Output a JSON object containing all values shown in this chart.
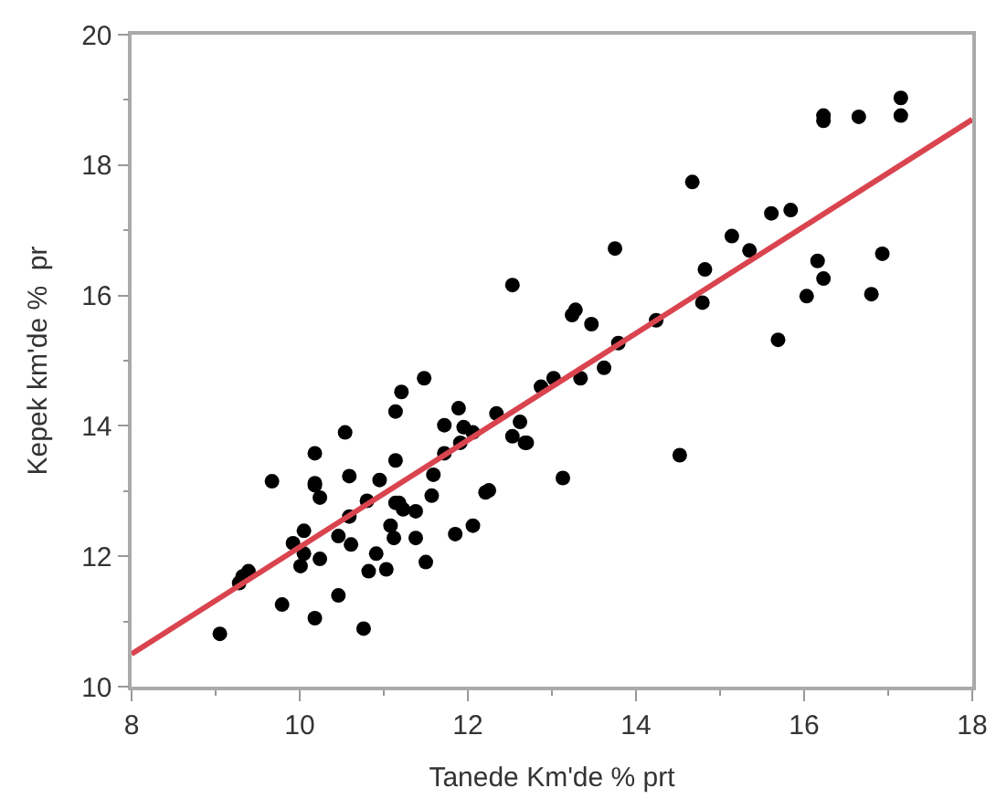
{
  "chart_data": {
    "type": "scatter",
    "xlabel": "Tanede Km'de % prt",
    "ylabel": "Kepek km'de %  pr",
    "xlim": [
      8,
      18
    ],
    "ylim": [
      10,
      20
    ],
    "xticks": [
      8,
      {
        "value": 9,
        "label": null
      },
      10,
      {
        "value": 11,
        "label": null
      },
      12,
      {
        "value": 13,
        "label": null
      },
      14,
      {
        "value": 15,
        "label": null
      },
      16,
      {
        "value": 17,
        "label": null
      },
      18
    ],
    "yticks": [
      10,
      {
        "value": 11,
        "label": null
      },
      12,
      {
        "value": 13,
        "label": null
      },
      14,
      {
        "value": 15,
        "label": null
      },
      16,
      {
        "value": 17,
        "label": null
      },
      18,
      {
        "value": 19,
        "label": null
      },
      20
    ],
    "grid": false,
    "marker": "circle",
    "series": [
      {
        "color": "#000000",
        "x": [
          9.05,
          9.28,
          9.32,
          9.39,
          9.67,
          9.79,
          9.92,
          10.05,
          10.01,
          10.05,
          10.18,
          10.18,
          10.18,
          10.24,
          10.24,
          10.18,
          10.46,
          10.46,
          10.54,
          10.59,
          10.59,
          10.61,
          10.76,
          10.82,
          10.8,
          10.91,
          10.95,
          11.03,
          11.14,
          11.21,
          11.14,
          11.08,
          11.12,
          11.14,
          11.18,
          11.23,
          11.38,
          11.38,
          11.5,
          11.48,
          11.57,
          11.59,
          11.72,
          11.72,
          11.85,
          11.89,
          11.95,
          12.06,
          11.91,
          12.06,
          12.21,
          12.25,
          12.34,
          12.53,
          12.53,
          12.62,
          12.68,
          12.7,
          12.87,
          13.02,
          13.13,
          13.24,
          13.28,
          13.34,
          13.47,
          13.62,
          13.75,
          13.79,
          14.24,
          14.52,
          14.67,
          14.79,
          14.82,
          15.14,
          15.35,
          15.61,
          15.84,
          15.69,
          16.03,
          16.16,
          16.23,
          16.23,
          16.23,
          16.65,
          16.8,
          16.93,
          17.15,
          17.15
        ],
        "values": [
          10.81,
          11.59,
          11.69,
          11.77,
          13.15,
          11.26,
          12.2,
          12.39,
          11.85,
          12.04,
          13.58,
          13.12,
          13.09,
          12.9,
          11.96,
          11.05,
          11.4,
          12.31,
          13.9,
          13.23,
          12.61,
          12.18,
          10.89,
          11.77,
          12.85,
          12.04,
          13.17,
          11.8,
          14.22,
          14.52,
          13.47,
          12.47,
          12.28,
          12.82,
          12.82,
          12.72,
          12.69,
          12.28,
          11.91,
          14.73,
          12.93,
          13.25,
          13.58,
          14.01,
          12.34,
          14.27,
          13.98,
          13.9,
          13.74,
          12.47,
          12.98,
          13.01,
          14.19,
          16.16,
          13.84,
          14.06,
          13.74,
          13.74,
          14.6,
          14.73,
          13.2,
          15.7,
          15.78,
          14.73,
          15.56,
          14.89,
          16.72,
          15.27,
          15.62,
          13.55,
          17.74,
          15.89,
          16.4,
          16.91,
          16.69,
          17.26,
          17.31,
          15.32,
          15.99,
          16.53,
          16.26,
          18.76,
          18.68,
          18.74,
          16.02,
          16.64,
          19.03,
          18.76
        ]
      },
      {
        "type": "line",
        "color": "#d9444f",
        "marker": "none",
        "line_style": "solid",
        "x": [
          8,
          18
        ],
        "values": [
          10.5,
          18.7
        ]
      }
    ]
  }
}
